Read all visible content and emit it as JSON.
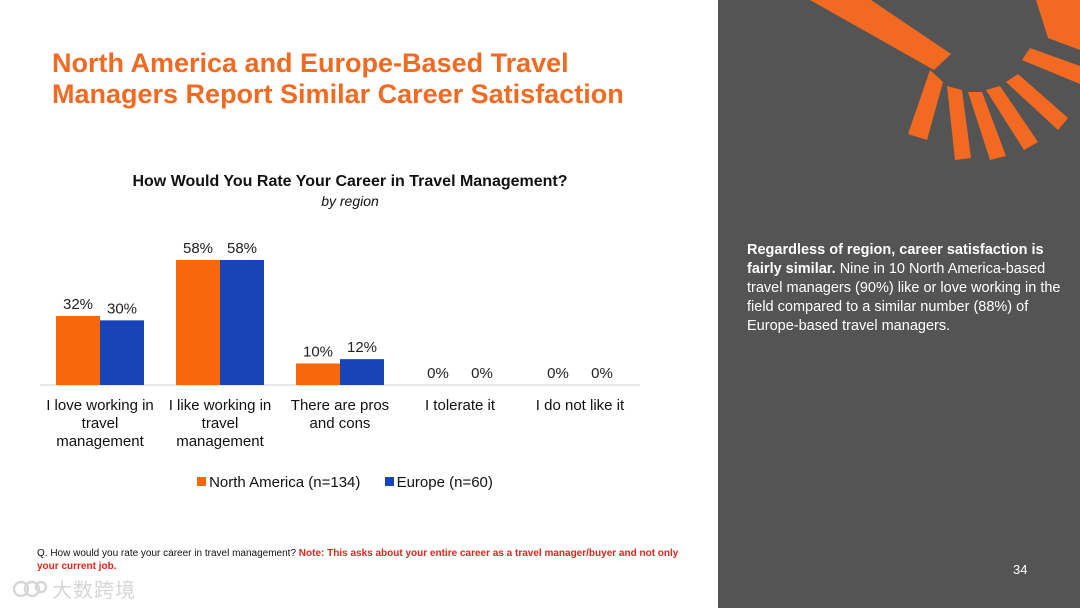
{
  "slide": {
    "title_line1": "North America and Europe-Based Travel",
    "title_line2": "Managers Report Similar Career Satisfaction",
    "footnote_question": "Q. How would you rate your career in travel management?",
    "footnote_note": "Note: This asks about your entire career as a travel manager/buyer and not only your current job.",
    "page_number": "34",
    "watermark": "大数跨境"
  },
  "panel": {
    "highlight": "Regardless of region, career satisfaction is fairly similar.",
    "body": "Nine in 10 North America-based travel managers (90%) like or love working in the field compared to a similar number (88%) of Europe-based travel managers."
  },
  "colors": {
    "accent": "#f26a21",
    "north_america": "#f7670c",
    "europe": "#1844b8",
    "panel_bg": "#545454"
  },
  "chart_data": {
    "type": "bar",
    "title": "How Would You Rate Your Career in Travel Management?",
    "subtitle": "by region",
    "categories": [
      [
        "I love working in",
        "travel",
        "management"
      ],
      [
        "I like working in",
        "travel",
        "management"
      ],
      [
        "There are pros",
        "and cons"
      ],
      [
        "I tolerate it"
      ],
      [
        "I do not like it"
      ]
    ],
    "series": [
      {
        "name": "North America (n=134)",
        "values": [
          32,
          58,
          10,
          0,
          0
        ],
        "labels": [
          "32%",
          "58%",
          "10%",
          "0%",
          "0%"
        ]
      },
      {
        "name": "Europe (n=60)",
        "values": [
          30,
          58,
          12,
          0,
          0
        ],
        "labels": [
          "30%",
          "58%",
          "12%",
          "0%",
          "0%"
        ]
      }
    ],
    "ylim": [
      0,
      58
    ],
    "xlabel": "",
    "ylabel": "",
    "grid": false,
    "legend_position": "bottom"
  }
}
